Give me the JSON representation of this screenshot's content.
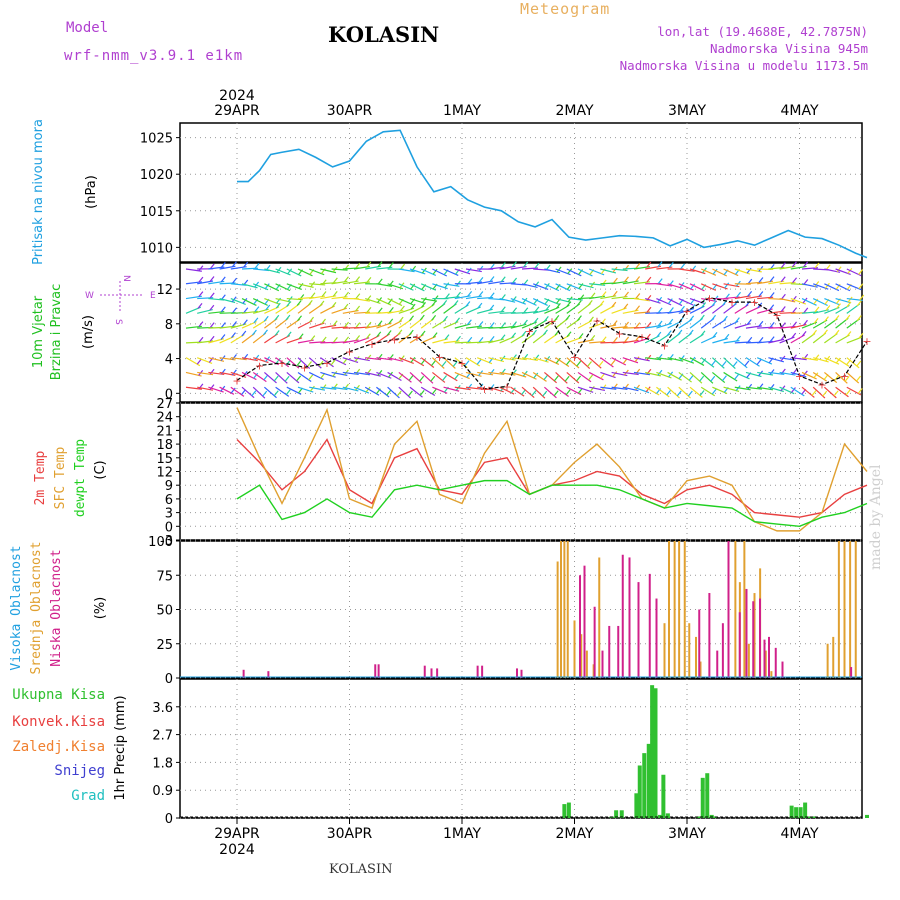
{
  "header": {
    "model_label": "Model",
    "model_id": "wrf-nmm_v3.9.1 e1km",
    "station": "KOLASIN",
    "title": "Meteogram",
    "coords": "lon,lat (19.4688E, 42.7875N)",
    "elevation": "Nadmorska Visina 945m",
    "model_elevation": "Nadmorska Visina u modelu 1173.5m"
  },
  "footer_station": "KOLASIN",
  "credit": "made by Angel",
  "colors": {
    "pressure": "#1fa0e0",
    "temp2m": "#e84040",
    "sfc_temp": "#e0a030",
    "dewpoint": "#20d020",
    "cloud_high": "#20a0e0",
    "cloud_mid": "#e0a030",
    "cloud_low": "#d0208a",
    "precip_total": "#30c030",
    "precip_conv": "#e84040",
    "precip_frozen": "#f08030",
    "snow": "#4040d0",
    "hail": "#20c0c0",
    "wind_label": "#20c020",
    "wind_compass": "#b040d0"
  },
  "chart_data": [
    {
      "type": "line",
      "id": "pressure",
      "ylabel": "Pritisak na nivou mora",
      "unit": "(hPa)",
      "ylim": [
        1008,
        1027
      ],
      "yticks": [
        1010,
        1015,
        1020,
        1025
      ],
      "x_days": [
        0,
        0.1,
        0.2,
        0.3,
        0.4,
        0.55,
        0.7,
        0.85,
        1.0,
        1.15,
        1.3,
        1.45,
        1.6,
        1.75,
        1.9,
        2.05,
        2.2,
        2.35,
        2.5,
        2.65,
        2.8,
        2.95,
        3.1,
        3.25,
        3.4,
        3.55,
        3.7,
        3.85,
        4.0,
        4.15,
        4.3,
        4.45,
        4.6,
        4.75,
        4.9,
        5.05,
        5.2,
        5.35,
        5.5,
        5.6
      ],
      "values": [
        1019,
        1019,
        1020.5,
        1022.7,
        1023,
        1023.4,
        1022.3,
        1021,
        1021.8,
        1024.5,
        1025.8,
        1026,
        1021,
        1017.6,
        1018.3,
        1016.5,
        1015.5,
        1015,
        1013.5,
        1012.8,
        1013.8,
        1011.4,
        1011,
        1011.3,
        1011.6,
        1011.5,
        1011.3,
        1010.2,
        1011.1,
        1010,
        1010.4,
        1010.9,
        1010.3,
        1011.3,
        1012.3,
        1011.4,
        1011.2,
        1010.3,
        1009.2,
        1008.6
      ]
    },
    {
      "type": "line",
      "id": "wind",
      "ylabel": "10m Vjetar Brzina i Pravac",
      "unit": "(m/s)",
      "compass": {
        "n": "N",
        "e": "E",
        "w": "W",
        "s": "S"
      },
      "ylim": [
        -1,
        15
      ],
      "yticks": [
        0,
        4,
        8,
        12
      ],
      "x_days": [
        0,
        0.2,
        0.4,
        0.6,
        0.8,
        1.0,
        1.2,
        1.4,
        1.6,
        1.8,
        2.0,
        2.2,
        2.4,
        2.6,
        2.8,
        3.0,
        3.2,
        3.4,
        3.6,
        3.8,
        4.0,
        4.2,
        4.4,
        4.6,
        4.8,
        5.0,
        5.2,
        5.4,
        5.6
      ],
      "values": [
        1.5,
        3.2,
        3.5,
        3,
        3.5,
        4.8,
        5.7,
        6.2,
        6.5,
        4.2,
        3.5,
        0.5,
        0.8,
        7.2,
        8.3,
        4.2,
        8.4,
        6.9,
        6.5,
        5.5,
        9.5,
        11.0,
        10.5,
        10.5,
        9.0,
        2.0,
        1.0,
        2.0,
        6.0
      ]
    },
    {
      "type": "line",
      "id": "temperature",
      "ylabel_lines": [
        "2m Temp",
        "SFC Temp",
        "dewpt Temp"
      ],
      "unit": "(C)",
      "ylim": [
        -3,
        27
      ],
      "yticks": [
        -3,
        0,
        3,
        6,
        9,
        12,
        15,
        18,
        21,
        24,
        27
      ],
      "x_days": [
        0,
        0.2,
        0.4,
        0.6,
        0.8,
        1.0,
        1.2,
        1.4,
        1.6,
        1.8,
        2.0,
        2.2,
        2.4,
        2.6,
        2.8,
        3.0,
        3.2,
        3.4,
        3.6,
        3.8,
        4.0,
        4.2,
        4.4,
        4.6,
        4.8,
        5.0,
        5.2,
        5.4,
        5.6
      ],
      "series": [
        {
          "name": "2m Temp",
          "values": [
            19,
            14,
            8,
            12,
            19,
            8,
            5,
            15,
            17,
            8,
            7,
            14,
            15,
            7,
            9,
            10,
            12,
            11,
            7,
            5,
            8,
            9,
            7,
            3,
            2.5,
            2,
            3,
            7,
            9
          ]
        },
        {
          "name": "SFC Temp",
          "values": [
            26,
            15,
            5,
            15,
            25.5,
            6,
            4,
            18,
            23,
            7,
            5,
            16,
            23,
            7,
            9,
            14,
            18,
            13,
            6,
            4,
            10,
            11,
            9,
            1,
            -1,
            -1,
            3,
            18,
            12
          ]
        },
        {
          "name": "dewpt Temp",
          "values": [
            6,
            9,
            1.5,
            3,
            6,
            3,
            2,
            8,
            9,
            8,
            9,
            10,
            10,
            7,
            9,
            9,
            9,
            8,
            6,
            4,
            5,
            4.5,
            4,
            1,
            0.5,
            0,
            2,
            3,
            5
          ]
        }
      ]
    },
    {
      "type": "bar",
      "id": "clouds",
      "ylabel_lines": [
        "Visoka Oblacnost",
        "Srednja Oblacnost",
        "Niska Oblacnost"
      ],
      "unit": "(%)",
      "ylim": [
        0,
        100
      ],
      "yticks": [
        0,
        25,
        50,
        75,
        100
      ],
      "series": [
        {
          "name": "Srednja Oblacnost",
          "x_days": [
            2.85,
            2.88,
            2.91,
            2.94,
            3.0,
            3.06,
            3.11,
            3.17,
            3.22,
            3.8,
            3.84,
            3.89,
            3.93,
            3.98,
            4.02,
            4.08,
            4.12,
            4.43,
            4.47,
            4.51,
            4.55,
            4.6,
            4.65,
            4.7,
            4.75,
            5.25,
            5.3,
            5.35,
            5.4,
            5.45,
            5.5
          ],
          "values": [
            85,
            100,
            100,
            100,
            42,
            32,
            20,
            10,
            88,
            40,
            100,
            100,
            100,
            100,
            40,
            30,
            12,
            100,
            70,
            100,
            25,
            62,
            80,
            20,
            5,
            25,
            30,
            100,
            100,
            100,
            100
          ]
        },
        {
          "name": "Niska Oblacnost",
          "x_days": [
            0.05,
            0.27,
            1.22,
            1.25,
            1.66,
            1.72,
            1.77,
            2.13,
            2.17,
            2.48,
            2.52,
            3.04,
            3.08,
            3.17,
            3.24,
            3.3,
            3.38,
            3.42,
            3.48,
            3.56,
            3.66,
            3.72,
            4.1,
            4.19,
            4.26,
            4.31,
            4.36,
            4.46,
            4.52,
            4.58,
            4.64,
            4.68,
            4.72,
            4.78,
            4.84,
            5.45
          ],
          "values": [
            6,
            5,
            10,
            10,
            9,
            7,
            7,
            9,
            9,
            7,
            6,
            75,
            82,
            52,
            20,
            38,
            38,
            90,
            88,
            70,
            76,
            58,
            50,
            62,
            20,
            40,
            100,
            48,
            65,
            56,
            58,
            28,
            30,
            22,
            12,
            8
          ]
        }
      ]
    },
    {
      "type": "bar",
      "id": "precip",
      "ylabel": "1hr Precip (mm)",
      "legend": [
        "Ukupna Kisa",
        "Konvek.Kisa",
        "Zaledj.Kisa",
        "Snijeg",
        "Grad"
      ],
      "ylim": [
        0,
        4.5
      ],
      "yticks": [
        0,
        0.9,
        1.8,
        2.7,
        3.6
      ],
      "x_days": [
        2.91,
        2.95,
        3.33,
        3.37,
        3.42,
        3.55,
        3.58,
        3.62,
        3.66,
        3.69,
        3.72,
        3.76,
        3.79,
        3.83,
        4.1,
        4.14,
        4.18,
        4.22,
        4.25,
        4.93,
        4.97,
        5.01,
        5.05,
        5.09,
        5.13,
        5.6
      ],
      "values": [
        0.45,
        0.5,
        0.05,
        0.25,
        0.25,
        0.8,
        1.7,
        2.1,
        2.4,
        4.3,
        4.2,
        0.1,
        1.4,
        0.15,
        0.05,
        1.3,
        1.45,
        0.1,
        0.05,
        0.4,
        0.35,
        0.35,
        0.5,
        0.05,
        0.05,
        0.1
      ]
    }
  ],
  "axis": {
    "days": [
      "29APR",
      "30APR",
      "1MAY",
      "2MAY",
      "3MAY",
      "4MAY"
    ],
    "year": "2024"
  }
}
